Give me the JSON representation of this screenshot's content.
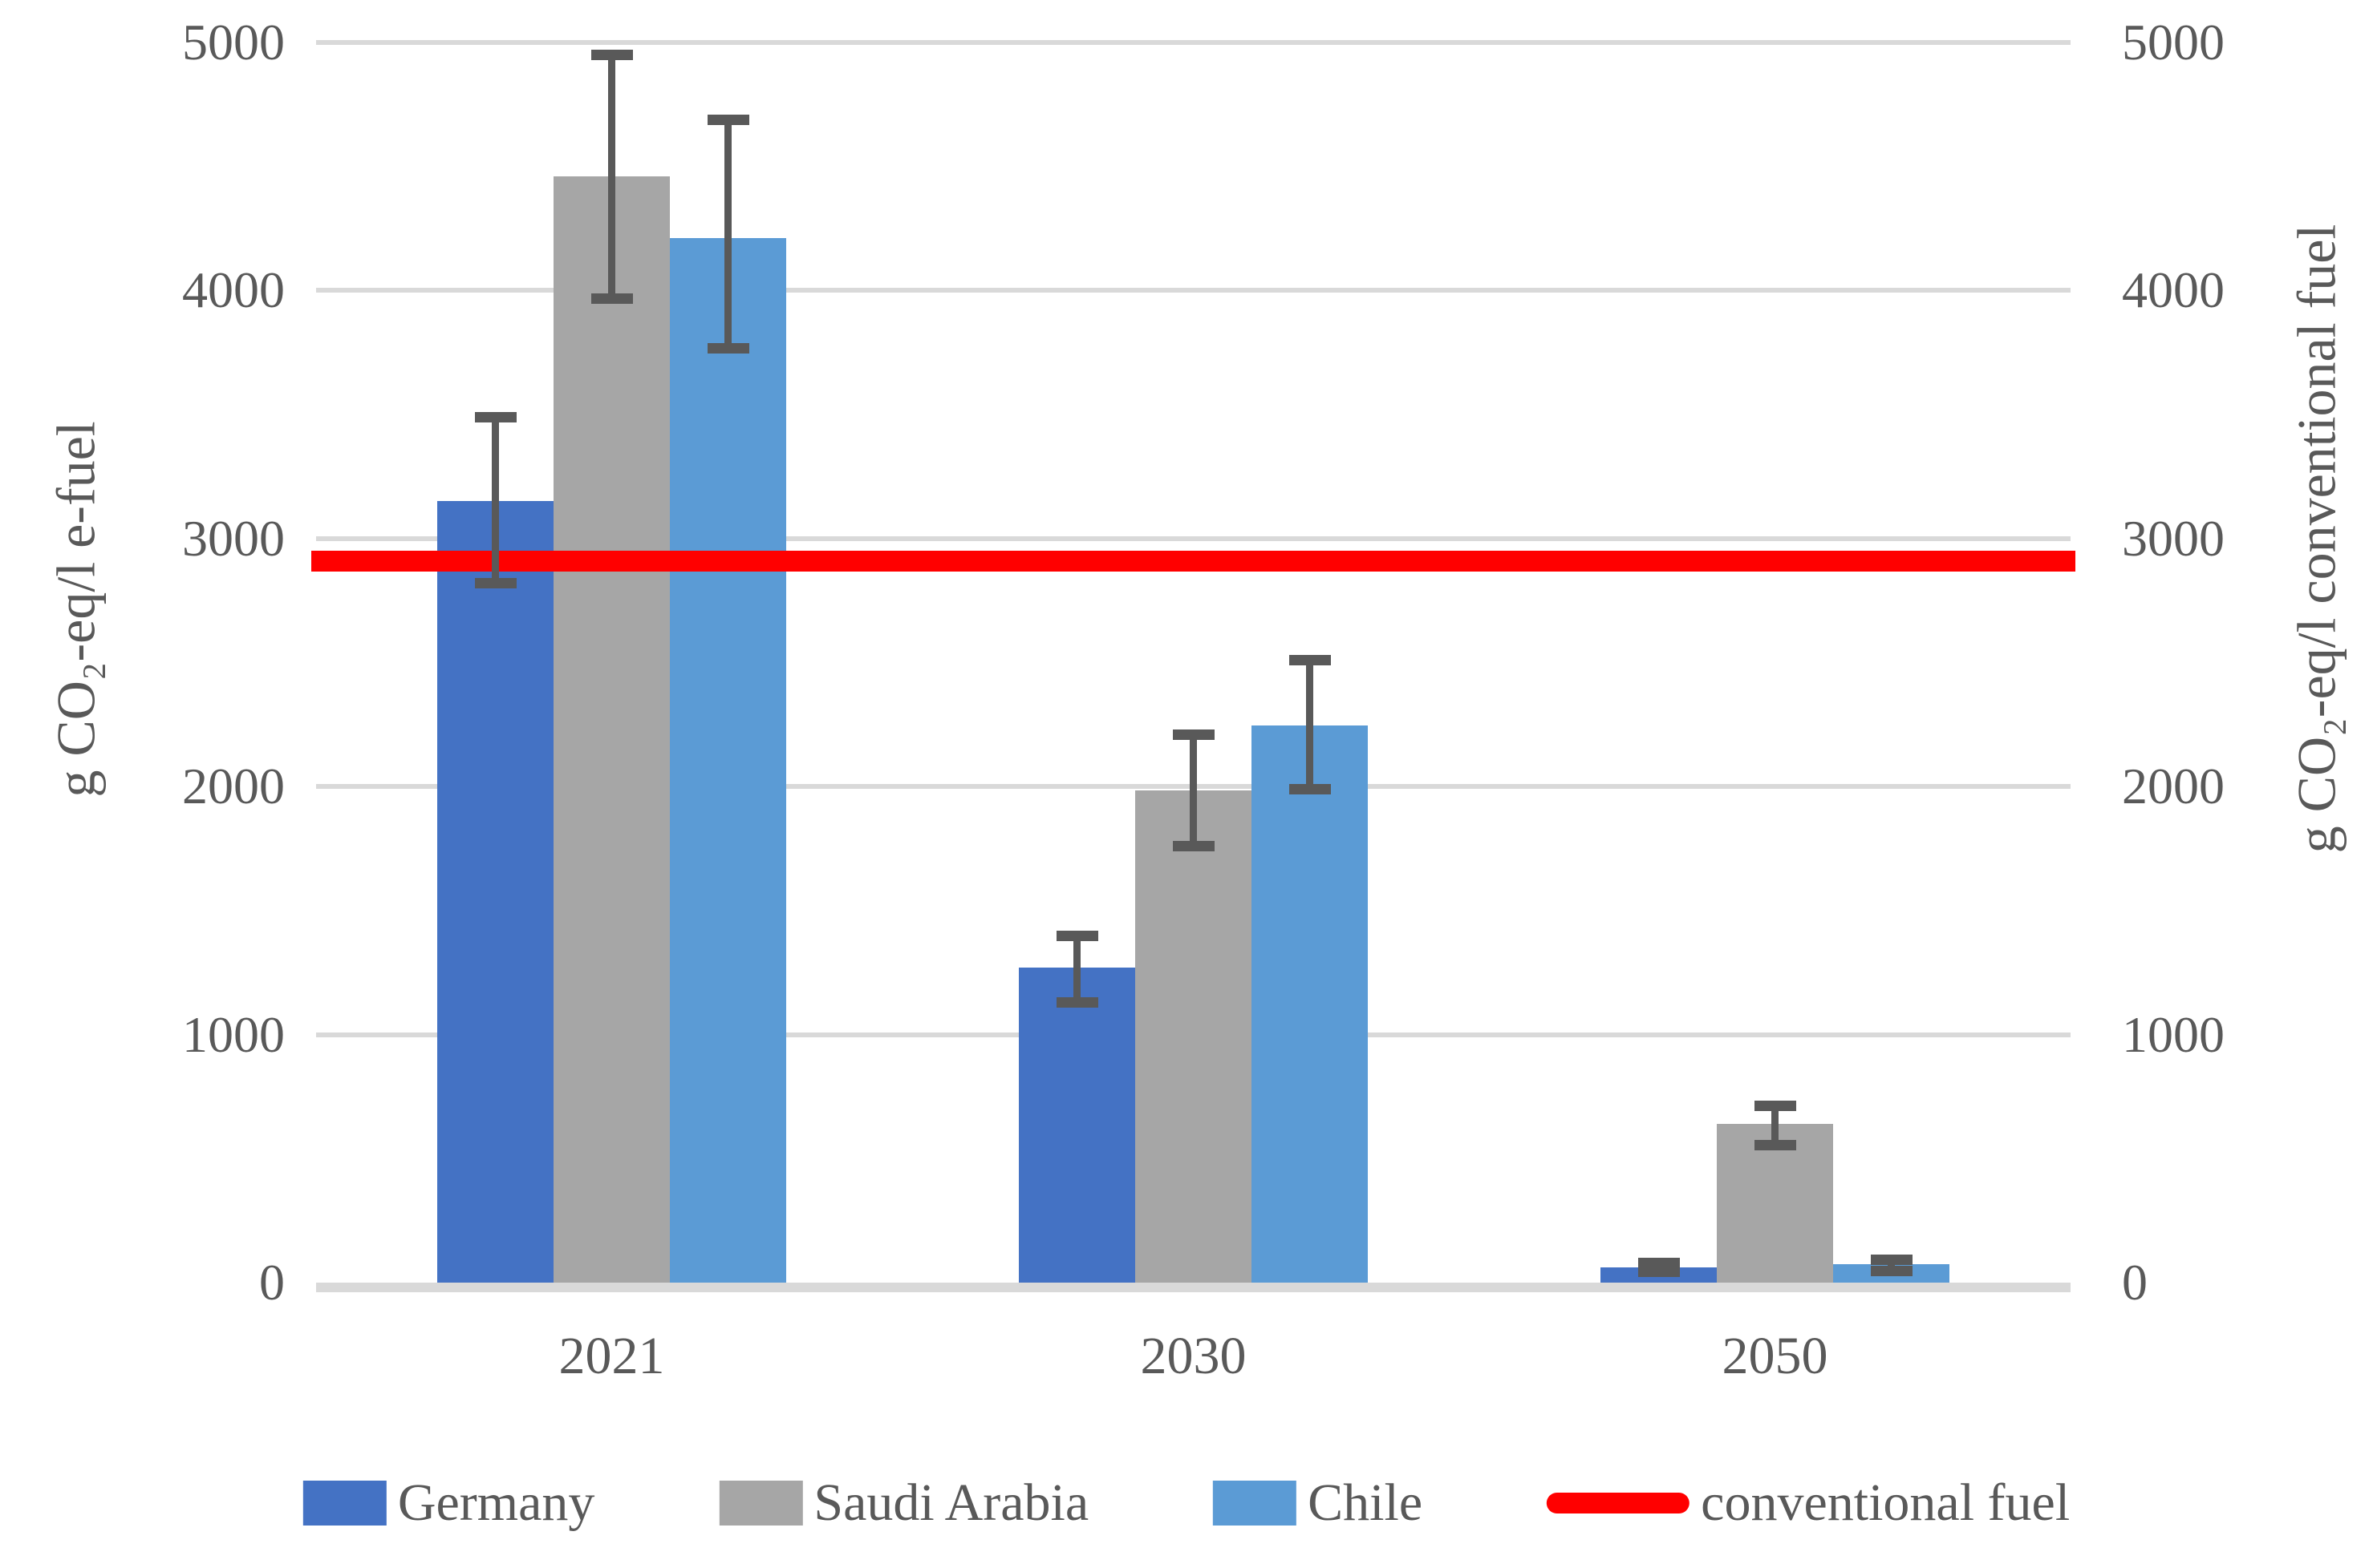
{
  "chart_data": {
    "type": "bar",
    "title": "",
    "categories": [
      "2021",
      "2030",
      "2050"
    ],
    "series": [
      {
        "name": "Germany",
        "color": "#4472C4",
        "values": [
          3150,
          1270,
          60
        ],
        "error_low": [
          2820,
          1130,
          45
        ],
        "error_high": [
          3490,
          1400,
          80
        ]
      },
      {
        "name": "Saudi Arabia",
        "color": "#A6A6A6",
        "values": [
          4460,
          1985,
          640
        ],
        "error_low": [
          3970,
          1760,
          555
        ],
        "error_high": [
          4950,
          2210,
          715
        ]
      },
      {
        "name": "Chile",
        "color": "#5B9BD5",
        "values": [
          4210,
          2245,
          75
        ],
        "error_low": [
          3770,
          1990,
          50
        ],
        "error_high": [
          4690,
          2510,
          95
        ]
      }
    ],
    "reference_line": {
      "label": "conventional fuel",
      "value": 2910,
      "color": "#FF0000"
    },
    "left_axis": {
      "title": "g CO₂-eq/l e-fuel",
      "ticks": [
        "0",
        "1000",
        "2000",
        "3000",
        "4000",
        "5000"
      ],
      "range": [
        0,
        5000
      ]
    },
    "right_axis": {
      "title": "g CO₂-eq/l conventional fuel",
      "ticks": [
        "0",
        "1000",
        "2000",
        "3000",
        "4000",
        "5000"
      ],
      "range": [
        0,
        5000
      ]
    },
    "grid": true,
    "legend_position": "bottom",
    "colors": {
      "gridline": "#D9D9D9",
      "axis_line": "#D9D9D9",
      "error_bar": "#595959",
      "text": "#595959"
    }
  }
}
